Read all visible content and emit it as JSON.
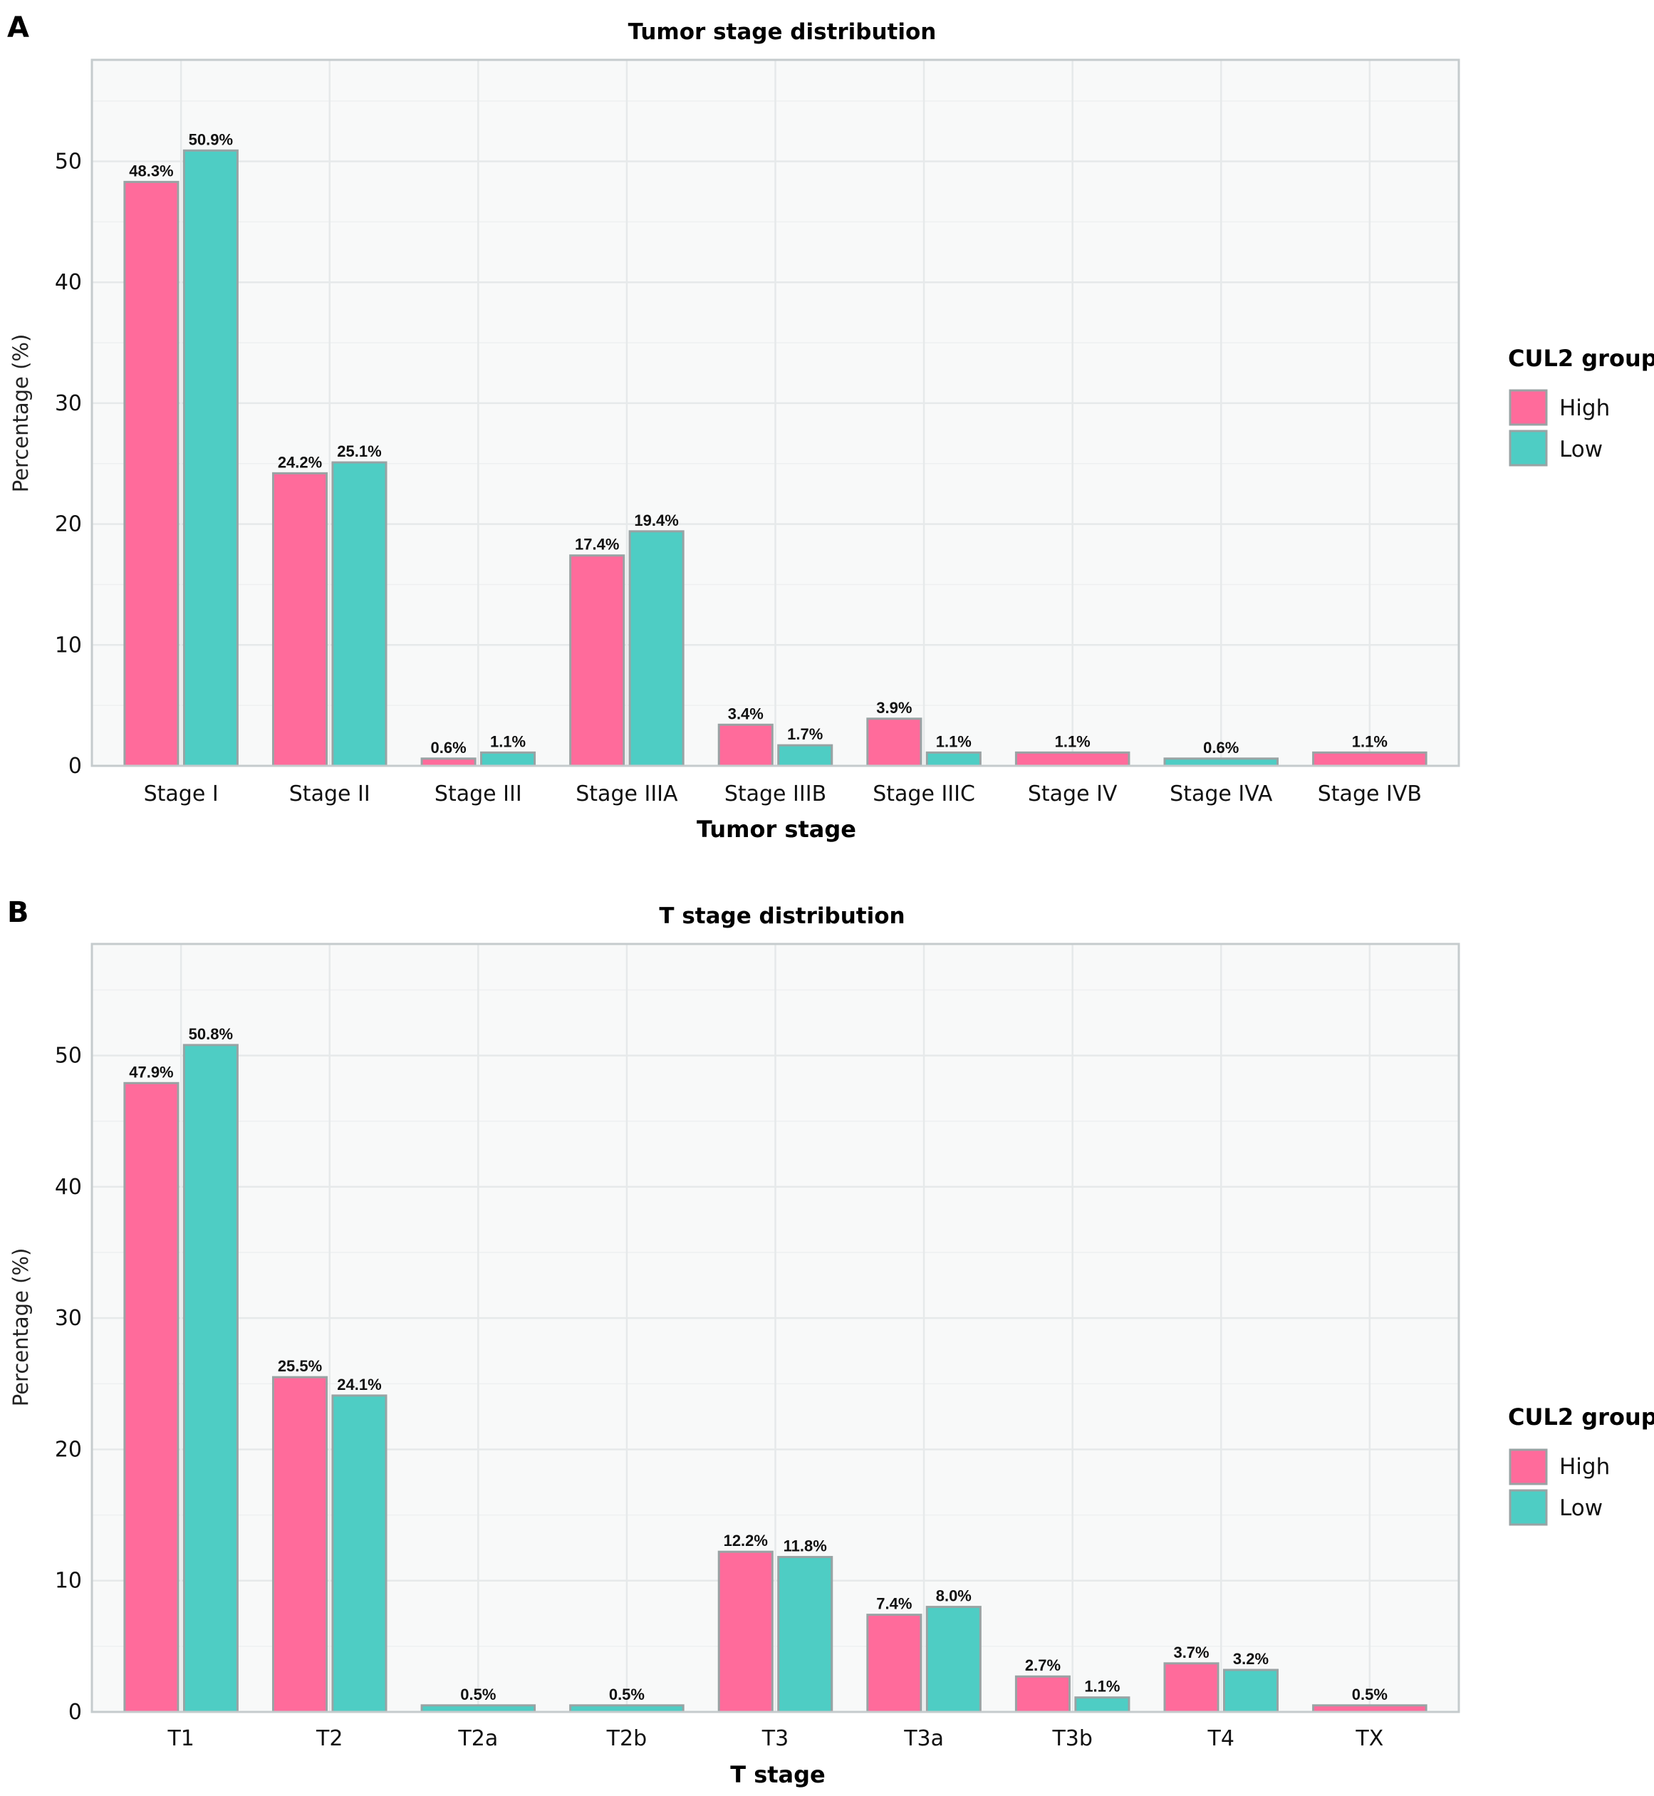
{
  "colors": {
    "High": "#ff6b9b",
    "Low": "#4ecdc4",
    "bar_border": "#99a3a4",
    "panel_bg": "#f8f9f9",
    "grid": "#e6e9ea",
    "panel_border": "#c5cbcd"
  },
  "chart_data": [
    {
      "panel": "A",
      "type": "bar",
      "title": "Tumor stage distribution",
      "xlabel": "Tumor stage",
      "ylabel": "Percentage (%)",
      "ylim": [
        0,
        58.4
      ],
      "yticks": [
        0,
        10,
        20,
        30,
        40,
        50
      ],
      "grid": true,
      "legend": {
        "title": "CUL2 group",
        "position": "right",
        "entries": [
          "High",
          "Low"
        ]
      },
      "categories": [
        "Stage I",
        "Stage II",
        "Stage III",
        "Stage IIIA",
        "Stage IIIB",
        "Stage IIIC",
        "Stage IV",
        "Stage IVA",
        "Stage IVB"
      ],
      "series": [
        {
          "name": "High",
          "values": [
            48.3,
            24.2,
            0.6,
            17.4,
            3.4,
            3.9,
            1.1,
            null,
            1.1
          ],
          "labels": [
            "48.3%",
            "24.2%",
            "0.6%",
            "17.4%",
            "3.4%",
            "3.9%",
            "1.1%",
            null,
            "1.1%"
          ]
        },
        {
          "name": "Low",
          "values": [
            50.9,
            25.1,
            1.1,
            19.4,
            1.7,
            1.1,
            null,
            0.6,
            null
          ],
          "labels": [
            "50.9%",
            "25.1%",
            "1.1%",
            "19.4%",
            "1.7%",
            "1.1%",
            null,
            "0.6%",
            null
          ]
        }
      ]
    },
    {
      "panel": "B",
      "type": "bar",
      "title": "T stage distribution",
      "xlabel": "T stage",
      "ylabel": "Percentage (%)",
      "ylim": [
        0,
        58.5
      ],
      "yticks": [
        0,
        10,
        20,
        30,
        40,
        50
      ],
      "grid": true,
      "legend": {
        "title": "CUL2 group",
        "position": "right",
        "entries": [
          "High",
          "Low"
        ]
      },
      "categories": [
        "T1",
        "T2",
        "T2a",
        "T2b",
        "T3",
        "T3a",
        "T3b",
        "T4",
        "TX"
      ],
      "series": [
        {
          "name": "High",
          "values": [
            47.9,
            25.5,
            null,
            null,
            12.2,
            7.4,
            2.7,
            3.7,
            0.5
          ],
          "labels": [
            "47.9%",
            "25.5%",
            null,
            null,
            "12.2%",
            "7.4%",
            "2.7%",
            "3.7%",
            "0.5%"
          ]
        },
        {
          "name": "Low",
          "values": [
            50.8,
            24.1,
            0.5,
            0.5,
            11.8,
            8.0,
            1.1,
            3.2,
            null
          ],
          "labels": [
            "50.8%",
            "24.1%",
            "0.5%",
            "0.5%",
            "11.8%",
            "8.0%",
            "1.1%",
            "3.2%",
            null
          ]
        }
      ]
    }
  ]
}
